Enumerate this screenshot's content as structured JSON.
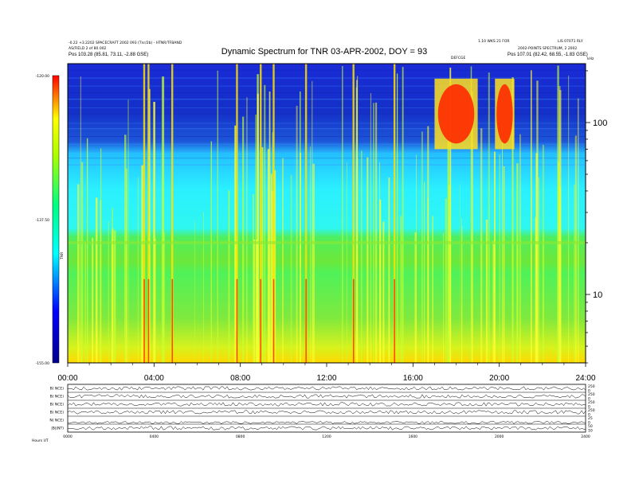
{
  "header": {
    "title": "Dynamic Spectrum for TNR 03-APR-2002, DOY = 93",
    "left_line1": "-0.22 +3.2202 SPACECRAFT 2002 093 (Tnr/2b) - HTNR/TFBAND",
    "left_line2": "AS/FIELD 2 of 80.002",
    "left_pos": "Pos   103.28 (85.81, 73.11, -2.88 GSE)",
    "right_line1": "1.10 WKS 21 FOR",
    "right_line2": "LIS 07071 RLY",
    "right_line3": "2002-POINTS SPECTRUM, 2 2002",
    "right_pos": "Pos   107.01 (82.42, 68.55, -1.83 GSE)",
    "center_label": "DEFCGE",
    "corner_label": "kHz"
  },
  "colorbar": {
    "label": "TNR",
    "ticks": [
      "-120.00",
      "-137.50",
      "-155.00"
    ],
    "min": -155.0,
    "max": -120.0
  },
  "chart_data": [
    {
      "type": "heatmap",
      "title": "Dynamic Spectrum for TNR 03-APR-2002, DOY = 93",
      "x_ticks": [
        "00:00",
        "04:00",
        "08:00",
        "12:00",
        "16:00",
        "20:00",
        "24:00"
      ],
      "x_range_hours": [
        0,
        24
      ],
      "y_scale": "log",
      "y_unit": "kHz",
      "y_ticks": [
        100,
        10
      ],
      "y_range_khz": [
        4,
        220
      ],
      "value_range_db": [
        -155.0,
        -120.0
      ],
      "features": [
        {
          "kind": "type-III bursts",
          "time_hours": [
            3.5,
            3.7,
            4.8,
            7.8,
            8.9,
            9.5,
            11.0,
            13.2,
            15.1
          ]
        },
        {
          "kind": "intense low-frequency emission",
          "time_hours": [
            17.0,
            19.0
          ],
          "freq_khz": [
            70,
            180
          ]
        },
        {
          "kind": "intense low-frequency emission",
          "time_hours": [
            19.8,
            20.7
          ],
          "freq_khz": [
            70,
            180
          ]
        },
        {
          "kind": "plasma line",
          "freq_khz": 20
        }
      ]
    },
    {
      "type": "line",
      "title": "",
      "panels": [
        "B( NCE)",
        "B( NCE)",
        "B( NCE)",
        "B( NCE)",
        "N( NCE)",
        "|B|(NT)"
      ],
      "right_ticks": [
        [
          "250",
          "0"
        ],
        [
          "250",
          "0"
        ],
        [
          "250",
          "0"
        ],
        [
          "250",
          "0"
        ],
        [
          "25",
          "0"
        ],
        [
          "50",
          "10"
        ]
      ],
      "x_ticks": [
        "0000",
        "0400",
        "0800",
        "1200",
        "1600",
        "2000",
        "2400"
      ],
      "footer": "Hours   UT"
    }
  ]
}
